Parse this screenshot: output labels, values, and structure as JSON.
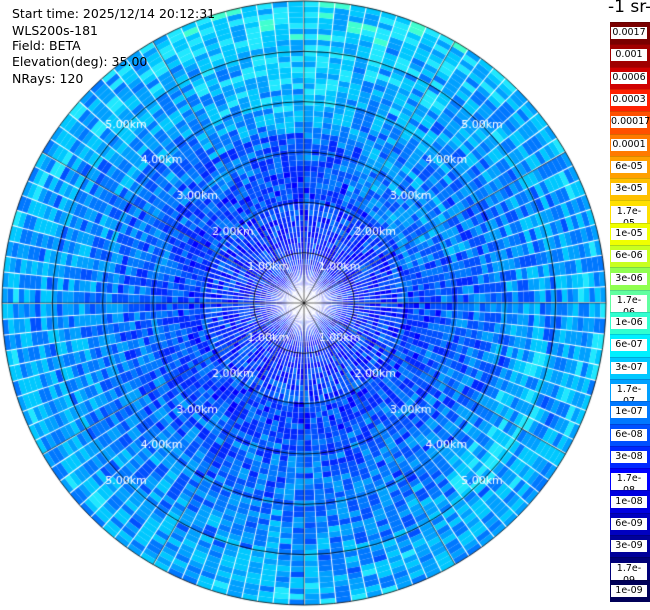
{
  "header": {
    "start_time": "Start time: 2025/12/14 20:12:31",
    "instrument": "WLS200s-181",
    "field": "Field: BETA",
    "elevation": "Elevation(deg): 35.00",
    "nrays": "NRays: 120"
  },
  "colorbar": {
    "unit_label": "-1 sr-",
    "labels": [
      "0.0017",
      "0.001",
      "0.0006",
      "0.0003",
      "0.00017",
      "0.0001",
      "6e-05",
      "3e-05",
      "1.7e-05",
      "1e-05",
      "6e-06",
      "3e-06",
      "1.7e-06",
      "1e-06",
      "6e-07",
      "3e-07",
      "1.7e-07",
      "1e-07",
      "6e-08",
      "3e-08",
      "1.7e-08",
      "1e-08",
      "6e-09",
      "3e-09",
      "1.7e-09",
      "1e-09"
    ],
    "colors": [
      "#7a0000",
      "#a00000",
      "#d00000",
      "#ff2000",
      "#ff5000",
      "#ff7a00",
      "#ffa000",
      "#ffc000",
      "#ffe000",
      "#f0ff00",
      "#c8ff20",
      "#90ff50",
      "#60ffa0",
      "#30ffd0",
      "#00f0ff",
      "#00c8ff",
      "#00a0ff",
      "#0078ff",
      "#0050ff",
      "#0028ff",
      "#0000ff",
      "#0000e0",
      "#0000c0",
      "#00009a",
      "#000078",
      "#000058"
    ]
  },
  "ppi": {
    "n_rays": 120,
    "range_rings_km": [
      1,
      2,
      3,
      4,
      5
    ],
    "ring_labels": [
      "1.00km",
      "2.00km",
      "3.00km",
      "4.00km",
      "5.00km"
    ],
    "max_range_km": 6
  }
}
